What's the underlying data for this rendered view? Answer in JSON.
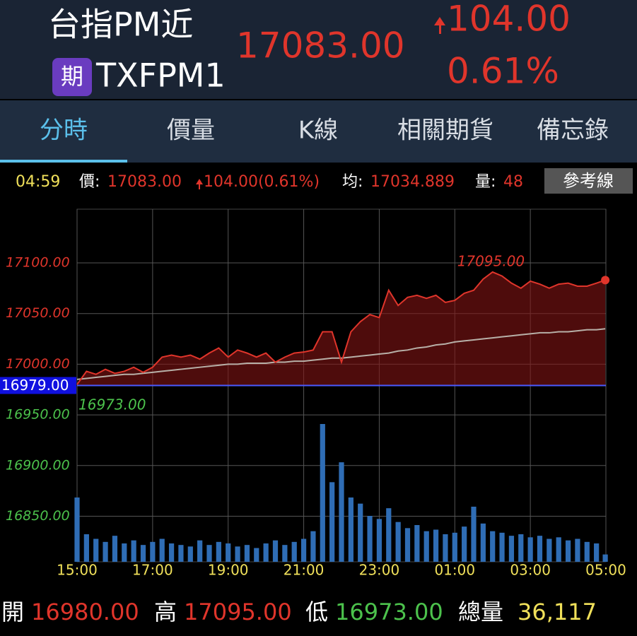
{
  "header": {
    "title": "台指PM近",
    "badge": "期",
    "code": "TXFPM1",
    "price": "17083.00",
    "change": "104.00",
    "change_pct": "0.61%"
  },
  "tabs": [
    "分時",
    "價量",
    "K線",
    "相關期貨",
    "備忘錄"
  ],
  "info": {
    "time": "04:59",
    "price_label": "價:",
    "price": "17083.00",
    "change": "104.00(0.61%)",
    "avg_label": "均:",
    "avg": "17034.889",
    "vol_label": "量:",
    "vol": "48",
    "button": "參考線"
  },
  "chart_data": {
    "type": "line",
    "x": [
      "15:00",
      "15:15",
      "15:30",
      "15:45",
      "16:00",
      "16:15",
      "16:30",
      "16:45",
      "17:00",
      "17:15",
      "17:30",
      "17:45",
      "18:00",
      "18:15",
      "18:30",
      "18:45",
      "19:00",
      "19:15",
      "19:30",
      "19:45",
      "20:00",
      "20:15",
      "20:30",
      "20:45",
      "21:00",
      "21:15",
      "21:30",
      "21:45",
      "22:00",
      "22:15",
      "22:30",
      "22:45",
      "23:00",
      "23:15",
      "23:30",
      "23:45",
      "00:00",
      "00:15",
      "00:30",
      "00:45",
      "01:00",
      "01:15",
      "01:30",
      "01:45",
      "02:00",
      "02:15",
      "02:30",
      "02:45",
      "03:00",
      "03:15",
      "03:30",
      "03:45",
      "04:00",
      "04:15",
      "04:30",
      "04:45",
      "04:59"
    ],
    "series": [
      {
        "kind": "price",
        "color": "#e0352b",
        "values": [
          16980,
          16993,
          16990,
          16995,
          16991,
          16993,
          16997,
          16992,
          16997,
          17007,
          17009,
          17007,
          17009,
          17005,
          17011,
          17016,
          17007,
          17014,
          17011,
          17007,
          17011,
          17002,
          17007,
          17011,
          17012,
          17014,
          17032,
          17032,
          17002,
          17032,
          17042,
          17049,
          17046,
          17073,
          17058,
          17066,
          17068,
          17065,
          17068,
          17061,
          17063,
          17070,
          17073,
          17084,
          17091,
          17087,
          17080,
          17075,
          17082,
          17079,
          17075,
          17079,
          17080,
          17077,
          17077,
          17080,
          17083
        ]
      },
      {
        "kind": "average",
        "color": "#b8b0a8",
        "values": [
          16985,
          16986,
          16987,
          16988,
          16989,
          16990,
          16990,
          16991,
          16992,
          16993,
          16994,
          16995,
          16996,
          16997,
          16998,
          16999,
          17000,
          17000,
          17001,
          17001,
          17001,
          17002,
          17002,
          17003,
          17003,
          17004,
          17005,
          17006,
          17006,
          17007,
          17008,
          17009,
          17010,
          17011,
          17013,
          17014,
          17016,
          17017,
          17019,
          17020,
          17022,
          17023,
          17024,
          17025,
          17026,
          17027,
          17028,
          17029,
          17030,
          17031,
          17031,
          17032,
          17032,
          17033,
          17034,
          17034,
          17035
        ]
      },
      {
        "kind": "volume",
        "color": "#2f6db5",
        "values": [
          420,
          180,
          150,
          130,
          170,
          120,
          140,
          110,
          130,
          150,
          120,
          110,
          100,
          140,
          110,
          130,
          120,
          100,
          110,
          90,
          120,
          140,
          110,
          130,
          150,
          200,
          900,
          520,
          650,
          420,
          380,
          300,
          280,
          350,
          260,
          220,
          240,
          200,
          210,
          180,
          190,
          230,
          360,
          250,
          200,
          190,
          170,
          180,
          160,
          170,
          150,
          160,
          140,
          150,
          130,
          120,
          48
        ]
      }
    ],
    "xlim": [
      "15:00",
      "05:00"
    ],
    "xticks": [
      "15:00",
      "17:00",
      "19:00",
      "21:00",
      "23:00",
      "01:00",
      "03:00",
      "05:00"
    ],
    "ylim": [
      16805,
      17153
    ],
    "yticks": [
      {
        "value": 17100,
        "label": "17100.00"
      },
      {
        "value": 17050,
        "label": "17050.00"
      },
      {
        "value": 17000,
        "label": "17000.00"
      },
      {
        "value": 16950,
        "label": "16950.00"
      },
      {
        "value": 16900,
        "label": "16900.00"
      },
      {
        "value": 16850,
        "label": "16850.00"
      }
    ],
    "reference": {
      "value": 16979,
      "label": "16979.00"
    },
    "high": {
      "value": 17095,
      "label": "17095.00"
    },
    "low": {
      "value": 16973,
      "label": "16973.00"
    },
    "grid": true
  },
  "footer": {
    "open_label": "開",
    "open": "16980.00",
    "high_label": "高",
    "high": "17095.00",
    "low_label": "低",
    "low": "16973.00",
    "total_label": "總量",
    "total": "36,117"
  }
}
